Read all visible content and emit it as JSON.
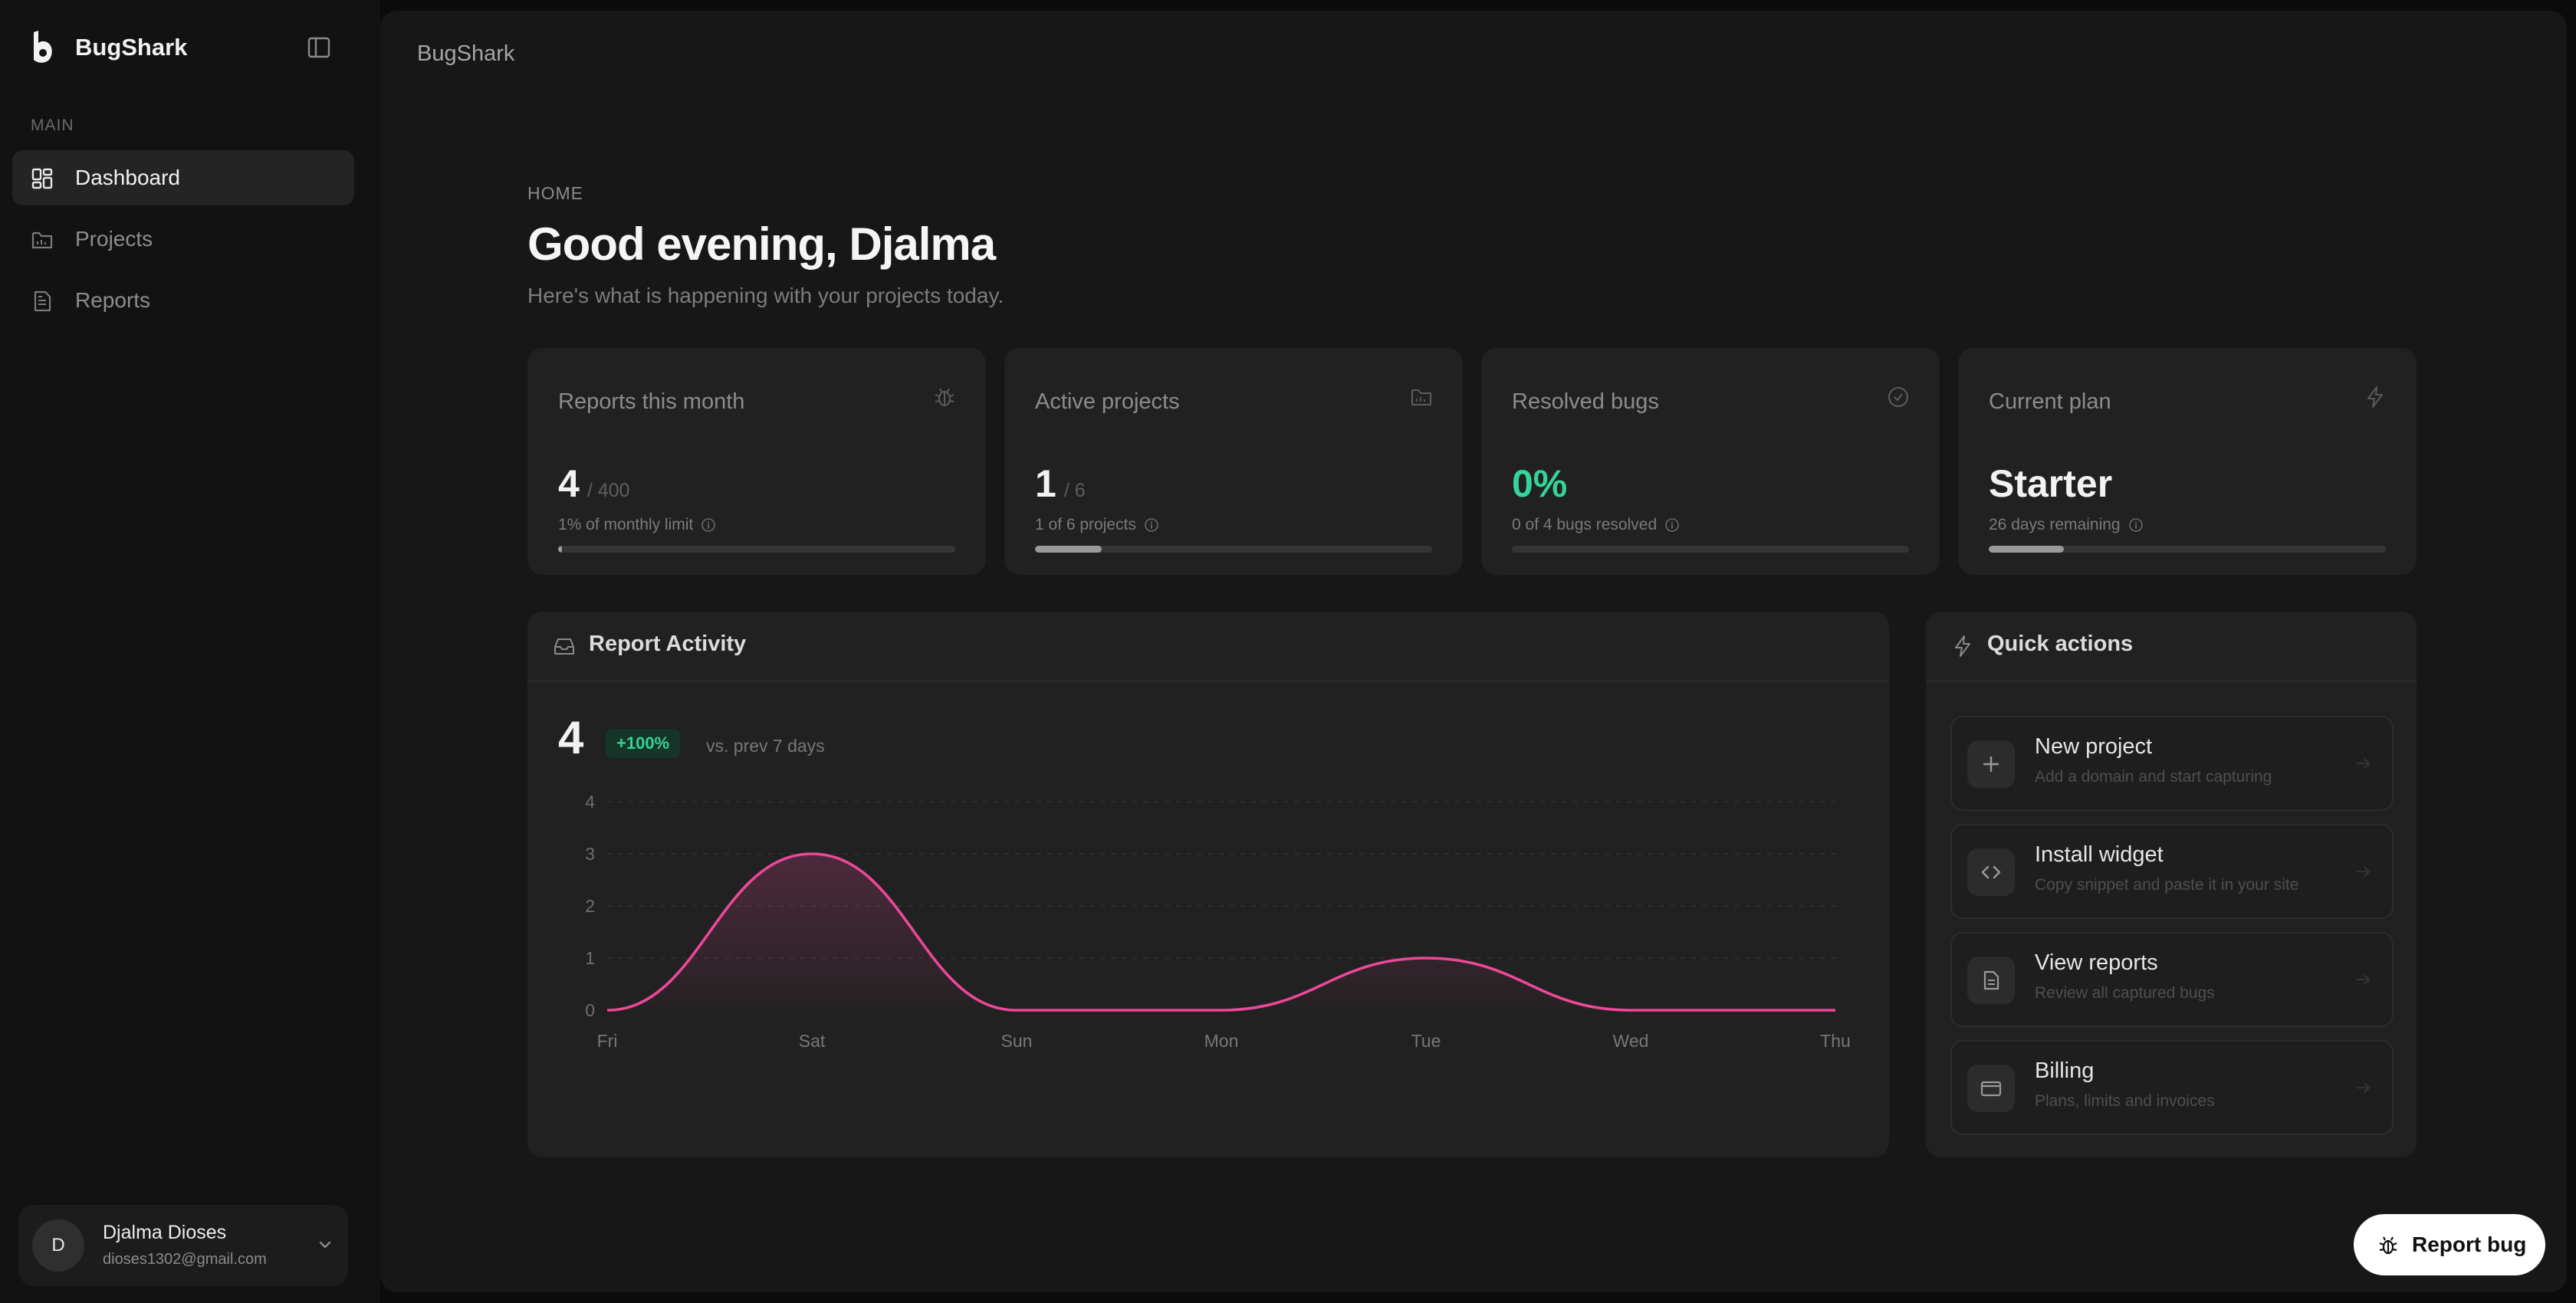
{
  "app": {
    "name": "BugShark"
  },
  "sidebar": {
    "section_label": "MAIN",
    "items": [
      {
        "label": "Dashboard",
        "icon": "dashboard-icon",
        "active": true
      },
      {
        "label": "Projects",
        "icon": "folder-icon",
        "active": false
      },
      {
        "label": "Reports",
        "icon": "document-icon",
        "active": false
      }
    ],
    "user": {
      "initial": "D",
      "name": "Djalma Dioses",
      "email": "dioses1302@gmail.com"
    }
  },
  "topbar": {
    "title": "BugShark"
  },
  "page": {
    "label": "HOME",
    "title": "Good evening, Djalma",
    "subtitle": "Here's what is happening with your projects today."
  },
  "stats": [
    {
      "title": "Reports this month",
      "icon": "bug-icon",
      "value": "4",
      "limit": "/ 400",
      "note": "1% of monthly limit",
      "progress": 0.01
    },
    {
      "title": "Active projects",
      "icon": "folder-icon",
      "value": "1",
      "limit": "/ 6",
      "note": "1 of 6 projects",
      "progress": 0.167
    },
    {
      "title": "Resolved bugs",
      "icon": "check-circle-icon",
      "value": "0%",
      "limit": "",
      "note": "0 of 4 bugs resolved",
      "progress": 0
    },
    {
      "title": "Current plan",
      "icon": "lightning-icon",
      "value": "Starter",
      "limit": "",
      "note": "26 days remaining",
      "progress": 0.19
    }
  ],
  "activity": {
    "title": "Report Activity",
    "value": "4",
    "badge": "+100%",
    "compare": "vs. prev 7 days"
  },
  "chart_data": {
    "type": "area",
    "categories": [
      "Fri",
      "Sat",
      "Sun",
      "Mon",
      "Tue",
      "Wed",
      "Thu"
    ],
    "series": [
      {
        "values": [
          0,
          3,
          0,
          0,
          1,
          0,
          0
        ]
      }
    ],
    "ylim": [
      0,
      4
    ],
    "yticks": [
      0,
      1,
      2,
      3,
      4
    ],
    "grid": true,
    "line_color": "#ec4899"
  },
  "quick_actions": {
    "title": "Quick actions",
    "items": [
      {
        "title": "New project",
        "subtitle": "Add a domain and start capturing",
        "icon": "plus-icon"
      },
      {
        "title": "Install widget",
        "subtitle": "Copy snippet and paste it in your site",
        "icon": "code-icon"
      },
      {
        "title": "View reports",
        "subtitle": "Review all captured bugs",
        "icon": "document-icon"
      },
      {
        "title": "Billing",
        "subtitle": "Plans, limits and invoices",
        "icon": "credit-card-icon"
      }
    ]
  },
  "report_bug": {
    "label": "Report bug"
  },
  "colors": {
    "accent": "#ec4899",
    "success": "#34d399",
    "background": "#171717",
    "card": "#212121"
  }
}
